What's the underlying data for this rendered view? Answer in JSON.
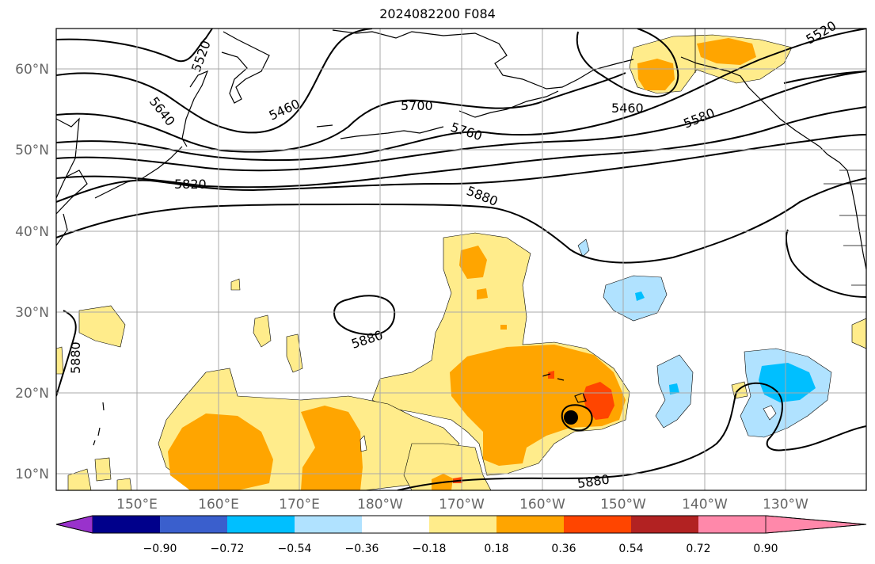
{
  "title": "2024082200 F084",
  "map": {
    "lat_labels": [
      "60°N",
      "50°N",
      "40°N",
      "30°N",
      "20°N",
      "10°N"
    ],
    "lon_labels": [
      "150°E",
      "160°E",
      "170°E",
      "180°W",
      "170°W",
      "160°W",
      "150°W",
      "140°W",
      "130°W"
    ],
    "contour_labels": [
      "5520",
      "5640",
      "5460",
      "5700",
      "5760",
      "5820",
      "5880",
      "5460",
      "5580",
      "5520",
      "5880",
      "5880",
      "5880"
    ],
    "storm_marker": "filled-circle"
  },
  "colorbar": {
    "colors": [
      "#9932CC",
      "#00008B",
      "#3A5FCD",
      "#00BFFF",
      "#B0E2FF",
      "#FFFFFF",
      "#FFEC8B",
      "#FFA500",
      "#FF4500",
      "#B22222",
      "#FF88AA"
    ],
    "tick_labels": [
      "−0.90",
      "−0.72",
      "−0.54",
      "−0.36",
      "−0.18",
      "0.18",
      "0.36",
      "0.54",
      "0.72",
      "0.90"
    ]
  }
}
